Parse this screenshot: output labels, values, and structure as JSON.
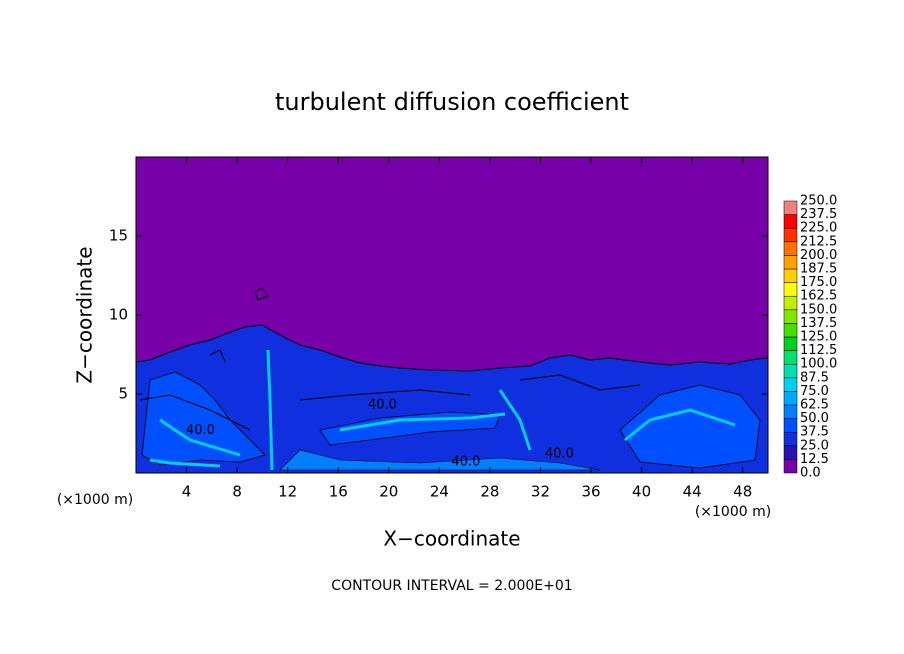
{
  "chart_data": {
    "type": "contour",
    "title": "turbulent diffusion coefficient",
    "xlabel": "X−coordinate",
    "ylabel": "Z−coordinate",
    "x_unit": "(×1000 m)",
    "footer": "CONTOUR INTERVAL = 2.000E+01",
    "xlim": [
      0,
      50
    ],
    "xticks": [
      4,
      8,
      12,
      16,
      20,
      24,
      28,
      32,
      36,
      40,
      44,
      48
    ],
    "ylim": [
      0,
      20
    ],
    "yticks": [
      5,
      10,
      15
    ],
    "contour_labels": [
      {
        "x": 5.1,
        "y": 2.7,
        "value": 40,
        "label": "40.0"
      },
      {
        "x": 19.5,
        "y": 4.3,
        "value": 40,
        "label": "40.0"
      },
      {
        "x": 26.1,
        "y": 0.7,
        "value": 40,
        "label": "40.0"
      },
      {
        "x": 33.5,
        "y": 1.2,
        "value": 40,
        "label": "40.0"
      }
    ],
    "colorbar": {
      "levels": [
        {
          "value": 0,
          "label": "0.0"
        },
        {
          "value": 12.5,
          "label": "12.5"
        },
        {
          "value": 25,
          "label": "25.0"
        },
        {
          "value": 37.5,
          "label": "37.5"
        },
        {
          "value": 50,
          "label": "50.0"
        },
        {
          "value": 62.5,
          "label": "62.5"
        },
        {
          "value": 75,
          "label": "75.0"
        },
        {
          "value": 87.5,
          "label": "87.5"
        },
        {
          "value": 100,
          "label": "100.0"
        },
        {
          "value": 112.5,
          "label": "112.5"
        },
        {
          "value": 125,
          "label": "125.0"
        },
        {
          "value": 137.5,
          "label": "137.5"
        },
        {
          "value": 150,
          "label": "150.0"
        },
        {
          "value": 162.5,
          "label": "162.5"
        },
        {
          "value": 175,
          "label": "175.0"
        },
        {
          "value": 187.5,
          "label": "187.5"
        },
        {
          "value": 200,
          "label": "200.0"
        },
        {
          "value": 212.5,
          "label": "212.5"
        },
        {
          "value": 225,
          "label": "225.0"
        },
        {
          "value": 237.5,
          "label": "237.5"
        },
        {
          "value": 250,
          "label": "250.0"
        }
      ],
      "colors": [
        "#7800a8",
        "#2a10b0",
        "#1030e0",
        "#0050ff",
        "#0080ff",
        "#00a8ff",
        "#00d0f0",
        "#00e0b0",
        "#00e070",
        "#00d020",
        "#40e000",
        "#80e800",
        "#c0f000",
        "#ffff00",
        "#ffd000",
        "#ffa000",
        "#ff7000",
        "#ff3000",
        "#ff0000",
        "#f08080"
      ]
    }
  }
}
